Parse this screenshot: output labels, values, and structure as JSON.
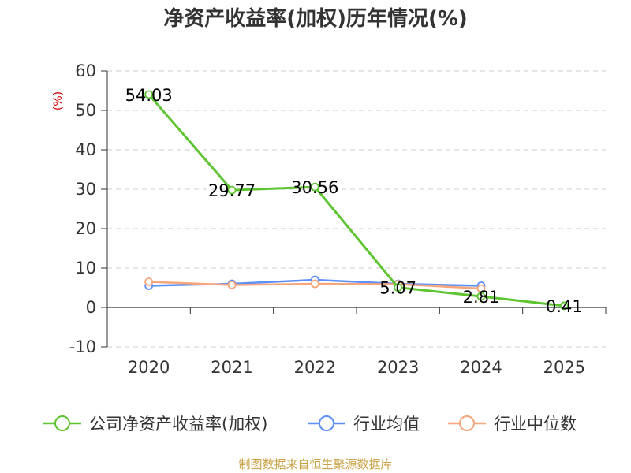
{
  "chart_data": {
    "type": "line",
    "title": "净资产收益率(加权)历年情况(%)",
    "ylabel": "(%)",
    "xlabel": "",
    "categories": [
      "2020",
      "2021",
      "2022",
      "2023",
      "2024",
      "2025"
    ],
    "ylim": [
      -10,
      60
    ],
    "yticks": [
      -10,
      0,
      10,
      20,
      30,
      40,
      50,
      60
    ],
    "grid": true,
    "legend_position": "bottom",
    "series": [
      {
        "name": "公司净资产收益率(加权)",
        "color": "#5ec431",
        "values": [
          54.03,
          29.77,
          30.56,
          5.07,
          2.81,
          0.41
        ],
        "labels": [
          "54.03",
          "29.77",
          "30.56",
          "5.07",
          "2.81",
          "0.41"
        ]
      },
      {
        "name": "行业均值",
        "color": "#5b8ff9",
        "values": [
          5.5,
          6.0,
          7.0,
          6.0,
          5.5,
          null
        ]
      },
      {
        "name": "行业中位数",
        "color": "#f7a57a",
        "values": [
          6.5,
          5.7,
          6.0,
          5.9,
          4.8,
          null
        ]
      }
    ]
  },
  "footer": {
    "source": "制图数据来自恒生聚源数据库"
  }
}
